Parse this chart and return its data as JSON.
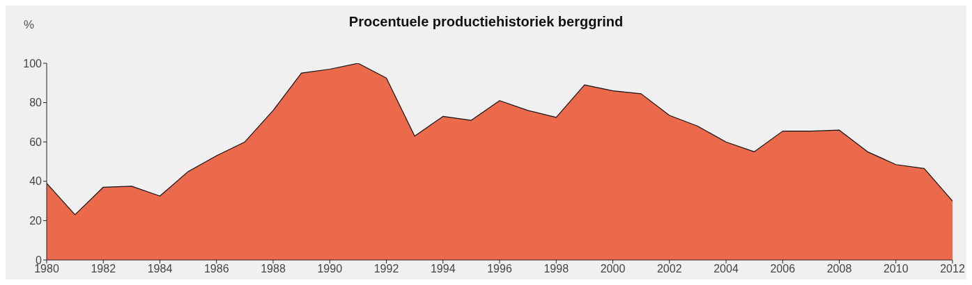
{
  "chart_data": {
    "type": "area",
    "title": "Procentuele productiehistoriek berggrind",
    "ylabel": "%",
    "x": [
      1980,
      1981,
      1982,
      1983,
      1984,
      1985,
      1986,
      1987,
      1988,
      1989,
      1990,
      1991,
      1992,
      1993,
      1994,
      1995,
      1996,
      1997,
      1998,
      1999,
      2000,
      2001,
      2002,
      2003,
      2004,
      2005,
      2006,
      2007,
      2008,
      2009,
      2010,
      2011,
      2012
    ],
    "series": [
      {
        "color": "#ec6a4c",
        "values": [
          39,
          23,
          37,
          37.5,
          32.5,
          45,
          53,
          60,
          76,
          95,
          97,
          100,
          92.5,
          63,
          73,
          71,
          81,
          76,
          72.5,
          89,
          86,
          84.5,
          73.5,
          68,
          60,
          55,
          65.5,
          65.5,
          66,
          55,
          48.5,
          46.5,
          30
        ]
      }
    ],
    "xlim": [
      1980,
      2012
    ],
    "xticks": [
      1980,
      1982,
      1984,
      1986,
      1988,
      1990,
      1992,
      1994,
      1996,
      1998,
      2000,
      2002,
      2004,
      2006,
      2008,
      2010,
      2012
    ],
    "ylim": [
      0,
      100
    ],
    "yticks": [
      0,
      20,
      40,
      60,
      80,
      100
    ],
    "grid": false
  }
}
